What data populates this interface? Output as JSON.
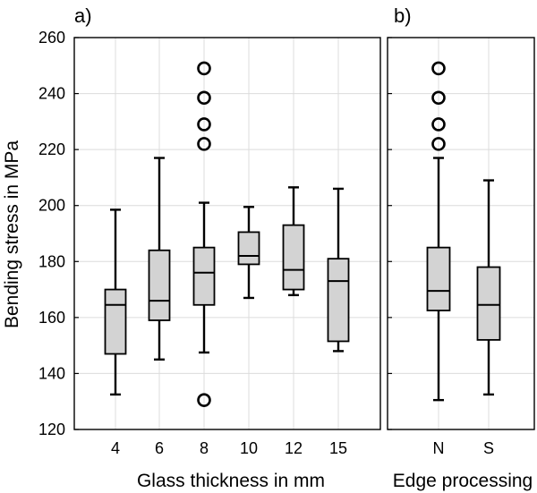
{
  "chart_data": [
    {
      "type": "box",
      "panel_label": "a)",
      "xlabel": "Glass thickness in mm",
      "ylabel": "Bending stress in MPa",
      "ylim": [
        120,
        260
      ],
      "yticks": [
        120,
        140,
        160,
        180,
        200,
        220,
        240,
        260
      ],
      "grid": true,
      "categories": [
        "4",
        "6",
        "8",
        "10",
        "12",
        "15"
      ],
      "boxes": [
        {
          "category": "4",
          "whisker_low": 132.5,
          "q1": 147,
          "median": 164.5,
          "q3": 170,
          "whisker_high": 198.5,
          "outliers": []
        },
        {
          "category": "6",
          "whisker_low": 145,
          "q1": 159,
          "median": 166,
          "q3": 184,
          "whisker_high": 217,
          "outliers": []
        },
        {
          "category": "8",
          "whisker_low": 147.5,
          "q1": 164.5,
          "median": 176,
          "q3": 185,
          "whisker_high": 201,
          "outliers": [
            130.5,
            222,
            229,
            238.5,
            249
          ]
        },
        {
          "category": "10",
          "whisker_low": 167,
          "q1": 179,
          "median": 182,
          "q3": 190.5,
          "whisker_high": 199.5,
          "outliers": []
        },
        {
          "category": "12",
          "whisker_low": 168,
          "q1": 170,
          "median": 177,
          "q3": 193,
          "whisker_high": 206.5,
          "outliers": []
        },
        {
          "category": "15",
          "whisker_low": 148,
          "q1": 151.5,
          "median": 173,
          "q3": 181,
          "whisker_high": 206,
          "outliers": []
        }
      ]
    },
    {
      "type": "box",
      "panel_label": "b)",
      "xlabel": "Edge processing",
      "ylabel": "",
      "ylim": [
        120,
        260
      ],
      "grid": true,
      "categories": [
        "N",
        "S"
      ],
      "boxes": [
        {
          "category": "N",
          "whisker_low": 130.5,
          "q1": 162.5,
          "median": 169.5,
          "q3": 185,
          "whisker_high": 217,
          "outliers": [
            222,
            229,
            238.5,
            249
          ]
        },
        {
          "category": "S",
          "whisker_low": 132.5,
          "q1": 152,
          "median": 164.5,
          "q3": 178,
          "whisker_high": 209,
          "outliers": []
        }
      ]
    }
  ],
  "style": {
    "box_fill": "#d3d3d3",
    "line_color": "#000000",
    "grid_color": "#dcdcdc"
  }
}
